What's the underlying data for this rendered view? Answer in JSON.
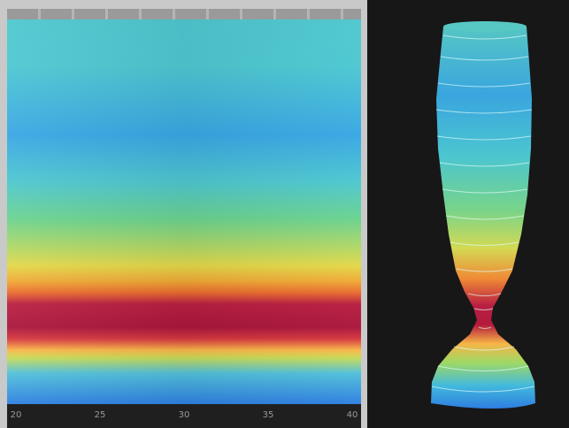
{
  "x_axis": {
    "tick_labels": [
      "20",
      "25",
      "30",
      "35",
      "40"
    ]
  },
  "colors": {
    "background": "#1c1c1c",
    "panel_background": "#171717",
    "ruler": "#9a9a9a"
  }
}
